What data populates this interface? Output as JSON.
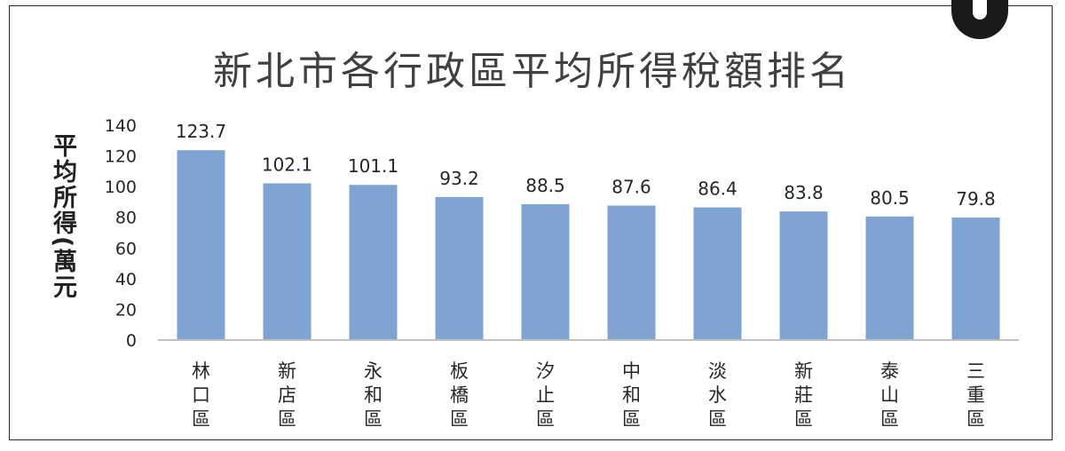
{
  "chart_data": {
    "type": "bar",
    "title": "新北市各行政區平均所得稅額排名",
    "ylabel": "平均所得(萬元",
    "xlabel": "",
    "categories": [
      "林口區",
      "新店區",
      "永和區",
      "板橋區",
      "汐止區",
      "中和區",
      "淡水區",
      "新莊區",
      "泰山區",
      "三重區"
    ],
    "values": [
      123.7,
      102.1,
      101.1,
      93.2,
      88.5,
      87.6,
      86.4,
      83.8,
      80.5,
      79.8
    ],
    "value_labels": [
      "123.7",
      "102.1",
      "101.1",
      "93.2",
      "88.5",
      "87.6",
      "86.4",
      "83.8",
      "80.5",
      "79.8"
    ],
    "ylim": [
      0,
      140
    ],
    "yticks": [
      "0",
      "20",
      "40",
      "60",
      "80",
      "100",
      "120",
      "140"
    ],
    "bar_color": "#7fa4d1",
    "grid": false,
    "legend": "none"
  }
}
